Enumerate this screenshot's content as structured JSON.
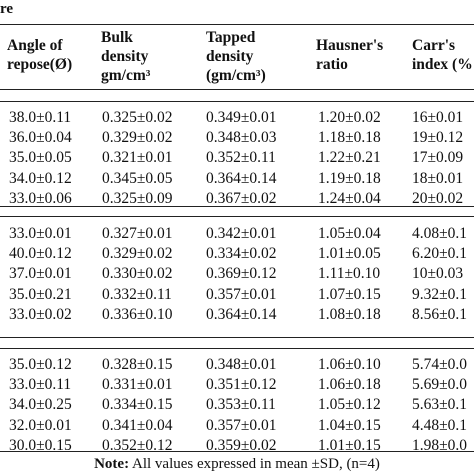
{
  "table": {
    "title_fragment": "re",
    "headers": [
      [
        "Angle of",
        "repose(Ø)"
      ],
      [
        "Bulk",
        "density",
        "gm/cm³"
      ],
      [
        "Tapped",
        "density",
        "(gm/cm³)"
      ],
      [
        "Hausner's",
        "ratio"
      ],
      [
        "Carr's",
        "index (%"
      ]
    ],
    "groups": [
      {
        "rows": [
          [
            "38.0±0.11",
            "0.325±0.02",
            "0.349±0.01",
            "1.20±0.02",
            "16±0.01"
          ],
          [
            "36.0±0.04",
            "0.329±0.02",
            "0.348±0.03",
            "1.18±0.18",
            "19±0.12"
          ],
          [
            "35.0±0.05",
            "0.321±0.01",
            "0.352±0.11",
            "1.22±0.21",
            "17±0.09"
          ],
          [
            "34.0±0.12",
            "0.345±0.05",
            "0.364±0.14",
            "1.19±0.18",
            "18±0.01"
          ],
          [
            "33.0±0.06",
            "0.325±0.09",
            "0.367±0.02",
            "1.24±0.04",
            "20±0.02"
          ]
        ]
      },
      {
        "rows": [
          [
            "33.0±0.01",
            "0.327±0.01",
            "0.342±0.01",
            "1.05±0.04",
            "4.08±0.1"
          ],
          [
            "40.0±0.12",
            "0.329±0.02",
            "0.334±0.02",
            "1.01±0.05",
            "6.20±0.1"
          ],
          [
            "37.0±0.01",
            "0.330±0.02",
            "0.369±0.12",
            "1.11±0.10",
            "10±0.03"
          ],
          [
            "35.0±0.21",
            "0.332±0.11",
            "0.357±0.01",
            "1.07±0.15",
            "9.32±0.1"
          ],
          [
            "33.0±0.02",
            "0.336±0.10",
            "0.364±0.14",
            "1.08±0.18",
            "8.56±0.1"
          ]
        ]
      },
      {
        "rows": [
          [
            "35.0±0.12",
            "0.328±0.15",
            "0.348±0.01",
            "1.06±0.10",
            "5.74±0.0"
          ],
          [
            "33.0±0.11",
            "0.331±0.01",
            "0.351±0.12",
            "1.06±0.18",
            "5.69±0.0"
          ],
          [
            "34.0±0.25",
            "0.334±0.15",
            "0.353±0.11",
            "1.05±0.12",
            "5.63±0.1"
          ],
          [
            "32.0±0.01",
            "0.341±0.04",
            "0.357±0.01",
            "1.04±0.15",
            "4.48±0.1"
          ],
          [
            "30.0±0.15",
            "0.352±0.12",
            "0.359±0.02",
            "1.01±0.15",
            "1.98±0.0"
          ]
        ]
      }
    ],
    "note_label": "Note:",
    "note_text": " All values expressed in mean ±SD, (n=4)"
  }
}
